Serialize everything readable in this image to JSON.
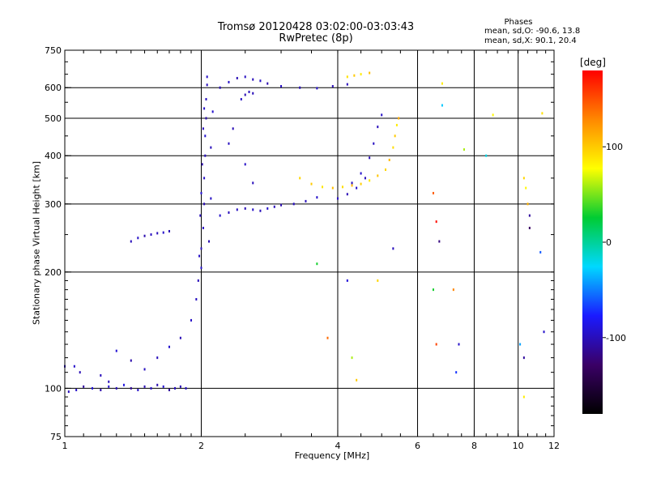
{
  "header": {
    "title": "Tromsø 20120428 03:02:00-03:03:43",
    "subtitle": "RwPretec (8p)"
  },
  "phases_box": {
    "heading": "Phases",
    "line_o": "mean, sd,O: -90.6, 13.8",
    "line_x": "mean, sd,X: 90.1, 20.4"
  },
  "colorbar": {
    "unit": "[deg]",
    "ticks": [
      {
        "value": 100,
        "label": "100"
      },
      {
        "value": 0,
        "label": "0"
      },
      {
        "value": -100,
        "label": "-100"
      }
    ],
    "range": [
      -180,
      180
    ],
    "colors": [
      "#000000",
      "#3a0066",
      "#1a1aff",
      "#00d8ff",
      "#00cc33",
      "#ffff00",
      "#ff8800",
      "#ff0000"
    ]
  },
  "chart_data": {
    "type": "scatter",
    "title": "Tromsø 20120428 03:02:00-03:03:43",
    "subtitle": "RwPretec (8p)",
    "xlabel": "Frequency [MHz]",
    "ylabel": "Stationary phase Virtual Height [km]",
    "x_scale": "log",
    "y_scale": "log",
    "xlim": [
      1,
      12
    ],
    "ylim": [
      75,
      750
    ],
    "x_ticks": [
      1,
      2,
      4,
      6,
      8,
      10,
      12
    ],
    "y_ticks": [
      75,
      100,
      200,
      300,
      400,
      500,
      600,
      750
    ],
    "x_gridlines": [
      2,
      4,
      6,
      8,
      10
    ],
    "y_gridlines": [
      100,
      200,
      300,
      400,
      500,
      600
    ],
    "grid": true,
    "color_by": "phase (deg)",
    "series": [
      {
        "mode": "O",
        "phase_mean": -90.6,
        "phase_sd": 13.8,
        "points": [
          [
            1.02,
            98,
            -100
          ],
          [
            1.06,
            99,
            -95
          ],
          [
            1.1,
            101,
            -110
          ],
          [
            1.15,
            100,
            -90
          ],
          [
            1.2,
            99,
            -105
          ],
          [
            1.25,
            101,
            -95
          ],
          [
            1.3,
            100,
            -100
          ],
          [
            1.35,
            102,
            -88
          ],
          [
            1.4,
            100,
            -112
          ],
          [
            1.45,
            99,
            -95
          ],
          [
            1.5,
            101,
            -102
          ],
          [
            1.55,
            100,
            -96
          ],
          [
            1.6,
            102,
            -104
          ],
          [
            1.65,
            101,
            -93
          ],
          [
            1.7,
            99,
            -110
          ],
          [
            1.75,
            100,
            -98
          ],
          [
            1.8,
            101,
            -102
          ],
          [
            1.85,
            100,
            -96
          ],
          [
            1.05,
            114,
            -95
          ],
          [
            1.2,
            108,
            -100
          ],
          [
            1.3,
            125,
            -92
          ],
          [
            1.4,
            118,
            -105
          ],
          [
            1.5,
            112,
            -98
          ],
          [
            1.6,
            120,
            -100
          ],
          [
            1.7,
            128,
            -94
          ],
          [
            1.8,
            135,
            -102
          ],
          [
            1.9,
            150,
            -96
          ],
          [
            1.95,
            170,
            -98
          ],
          [
            1.97,
            190,
            -100
          ],
          [
            2.0,
            205,
            -95
          ],
          [
            2.0,
            230,
            -100
          ],
          [
            2.02,
            260,
            -98
          ],
          [
            2.03,
            300,
            -102
          ],
          [
            2.03,
            350,
            -96
          ],
          [
            2.04,
            400,
            -100
          ],
          [
            2.04,
            450,
            -94
          ],
          [
            2.05,
            500,
            -104
          ],
          [
            2.05,
            560,
            -98
          ],
          [
            2.06,
            610,
            -100
          ],
          [
            2.06,
            640,
            -96
          ],
          [
            1.98,
            220,
            -97
          ],
          [
            1.99,
            280,
            -101
          ],
          [
            2.0,
            320,
            -93
          ],
          [
            2.01,
            380,
            -105
          ],
          [
            2.02,
            470,
            -99
          ],
          [
            2.03,
            530,
            -95
          ],
          [
            2.08,
            240,
            -103
          ],
          [
            2.1,
            310,
            -97
          ],
          [
            2.1,
            420,
            -100
          ],
          [
            2.12,
            520,
            -94
          ],
          [
            1.4,
            240,
            -100
          ],
          [
            1.45,
            245,
            -96
          ],
          [
            1.5,
            248,
            -104
          ],
          [
            1.55,
            250,
            -98
          ],
          [
            1.6,
            252,
            -100
          ],
          [
            1.65,
            253,
            -95
          ],
          [
            1.7,
            255,
            -102
          ],
          [
            2.2,
            280,
            -95
          ],
          [
            2.3,
            285,
            -100
          ],
          [
            2.4,
            290,
            -98
          ],
          [
            2.5,
            292,
            -102
          ],
          [
            2.6,
            290,
            -96
          ],
          [
            2.7,
            288,
            -100
          ],
          [
            2.8,
            292,
            -95
          ],
          [
            2.9,
            295,
            -100
          ],
          [
            3.0,
            298,
            -104
          ],
          [
            3.2,
            300,
            -98
          ],
          [
            3.4,
            305,
            -100
          ],
          [
            3.6,
            312,
            -95
          ],
          [
            2.2,
            600,
            -100
          ],
          [
            2.3,
            620,
            -95
          ],
          [
            2.4,
            635,
            -102
          ],
          [
            2.5,
            640,
            -98
          ],
          [
            2.6,
            630,
            -100
          ],
          [
            2.7,
            625,
            -96
          ],
          [
            2.8,
            615,
            -104
          ],
          [
            3.0,
            605,
            -98
          ],
          [
            3.3,
            600,
            -100
          ],
          [
            3.6,
            598,
            -95
          ],
          [
            3.9,
            605,
            -102
          ],
          [
            4.2,
            612,
            -100
          ],
          [
            2.45,
            560,
            -97
          ],
          [
            2.5,
            575,
            -103
          ],
          [
            2.55,
            585,
            -99
          ],
          [
            2.6,
            580,
            -101
          ],
          [
            2.3,
            430,
            -98
          ],
          [
            2.35,
            470,
            -102
          ],
          [
            2.5,
            380,
            -96
          ],
          [
            2.6,
            340,
            -100
          ],
          [
            4.3,
            340,
            -100
          ],
          [
            4.5,
            360,
            -95
          ],
          [
            4.7,
            395,
            -102
          ],
          [
            4.8,
            430,
            -98
          ],
          [
            4.9,
            475,
            -100
          ],
          [
            5.0,
            510,
            -96
          ],
          [
            4.0,
            310,
            -98
          ],
          [
            4.2,
            318,
            -102
          ],
          [
            4.4,
            330,
            -96
          ],
          [
            4.6,
            350,
            -100
          ],
          [
            1.0,
            114,
            -98
          ],
          [
            1.08,
            110,
            -102
          ],
          [
            1.25,
            104,
            -100
          ]
        ]
      },
      {
        "mode": "X",
        "phase_mean": 90.1,
        "phase_sd": 20.4,
        "points": [
          [
            3.3,
            350,
            95
          ],
          [
            3.5,
            338,
            100
          ],
          [
            3.7,
            332,
            88
          ],
          [
            3.9,
            330,
            105
          ],
          [
            4.1,
            332,
            92
          ],
          [
            4.3,
            335,
            110
          ],
          [
            4.5,
            338,
            98
          ],
          [
            4.7,
            345,
            86
          ],
          [
            4.9,
            355,
            102
          ],
          [
            5.1,
            368,
            95
          ],
          [
            5.2,
            390,
            108
          ],
          [
            5.3,
            420,
            92
          ],
          [
            5.35,
            450,
            100
          ],
          [
            5.4,
            480,
            85
          ],
          [
            5.45,
            500,
            112
          ],
          [
            4.2,
            640,
            90
          ],
          [
            4.35,
            645,
            100
          ],
          [
            4.5,
            650,
            85
          ],
          [
            4.7,
            655,
            105
          ]
        ]
      },
      {
        "mode": "scattered",
        "points": [
          [
            6.5,
            320,
            145
          ],
          [
            6.6,
            270,
            175
          ],
          [
            6.7,
            240,
            -120
          ],
          [
            6.5,
            180,
            30
          ],
          [
            6.6,
            130,
            155
          ],
          [
            7.2,
            180,
            130
          ],
          [
            7.4,
            130,
            -95
          ],
          [
            7.3,
            110,
            -70
          ],
          [
            7.6,
            415,
            60
          ],
          [
            8.5,
            400,
            -20
          ],
          [
            8.8,
            510,
            80
          ],
          [
            6.8,
            615,
            85
          ],
          [
            6.8,
            540,
            -30
          ],
          [
            10.3,
            350,
            95
          ],
          [
            10.4,
            330,
            80
          ],
          [
            10.5,
            300,
            110
          ],
          [
            10.6,
            280,
            -110
          ],
          [
            10.6,
            260,
            -130
          ],
          [
            11.2,
            225,
            -60
          ],
          [
            11.4,
            140,
            -95
          ],
          [
            10.3,
            120,
            -110
          ],
          [
            10.1,
            130,
            -40
          ],
          [
            10.3,
            95,
            85
          ],
          [
            11.3,
            515,
            90
          ],
          [
            5.3,
            230,
            -100
          ],
          [
            4.2,
            190,
            -90
          ],
          [
            4.9,
            190,
            95
          ],
          [
            3.6,
            210,
            30
          ],
          [
            4.4,
            105,
            100
          ],
          [
            4.3,
            120,
            60
          ],
          [
            3.8,
            135,
            140
          ]
        ]
      }
    ]
  }
}
